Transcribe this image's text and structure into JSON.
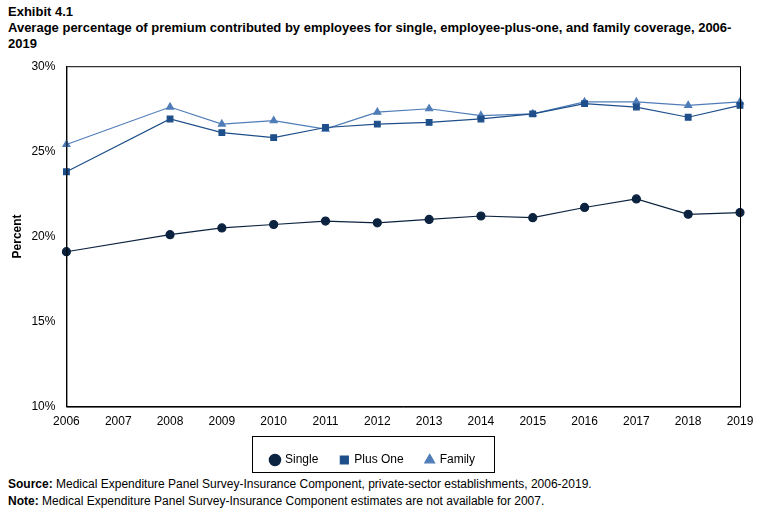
{
  "chart_data": {
    "type": "line",
    "title": "Exhibit 4.1",
    "subtitle": "Average percentage of premium contributed by employees for single, employee-plus-one, and family coverage, 2006-2019",
    "y_label": "Percent",
    "annotations": [
      "Source: Medical Expenditure Panel Survey-Insurance Component, private-sector establishments, 2006-2019.",
      "Note: Medical Expenditure Panel Survey-Insurance Component estimates are not available for 2007."
    ],
    "x": [
      2006,
      2008,
      2009,
      2010,
      2011,
      2012,
      2013,
      2014,
      2015,
      2016,
      2017,
      2018,
      2019
    ],
    "series": [
      {
        "name": "Single",
        "color": "#0c2340",
        "marker": "circle",
        "values": [
          19.1,
          20.1,
          20.5,
          20.7,
          20.9,
          20.8,
          21.0,
          21.2,
          21.1,
          21.7,
          22.2,
          21.3,
          21.4
        ]
      },
      {
        "name": "Plus One",
        "color": "#1e4f8a",
        "marker": "square",
        "values": [
          23.8,
          26.9,
          26.1,
          25.8,
          26.4,
          26.6,
          26.7,
          26.9,
          27.2,
          27.8,
          27.6,
          27.0,
          27.7
        ]
      },
      {
        "name": "Family",
        "color": "#4f7db8",
        "marker": "triangle",
        "values": [
          25.4,
          27.6,
          26.6,
          26.8,
          26.3,
          27.3,
          27.5,
          27.1,
          27.2,
          27.9,
          27.9,
          27.7,
          27.9
        ]
      }
    ],
    "xlim": [
      2006,
      2019
    ],
    "xticks": [
      2006,
      2007,
      2008,
      2009,
      2010,
      2011,
      2012,
      2013,
      2014,
      2015,
      2016,
      2017,
      2018,
      2019
    ],
    "ylim": [
      10,
      30
    ],
    "yticks": [
      {
        "value": 10,
        "label": "10%"
      },
      {
        "value": 15,
        "label": "15%"
      },
      {
        "value": 20,
        "label": "20%"
      },
      {
        "value": 25,
        "label": "25%"
      },
      {
        "value": 30,
        "label": "30%"
      }
    ],
    "grid": false,
    "legend": "bottom"
  }
}
